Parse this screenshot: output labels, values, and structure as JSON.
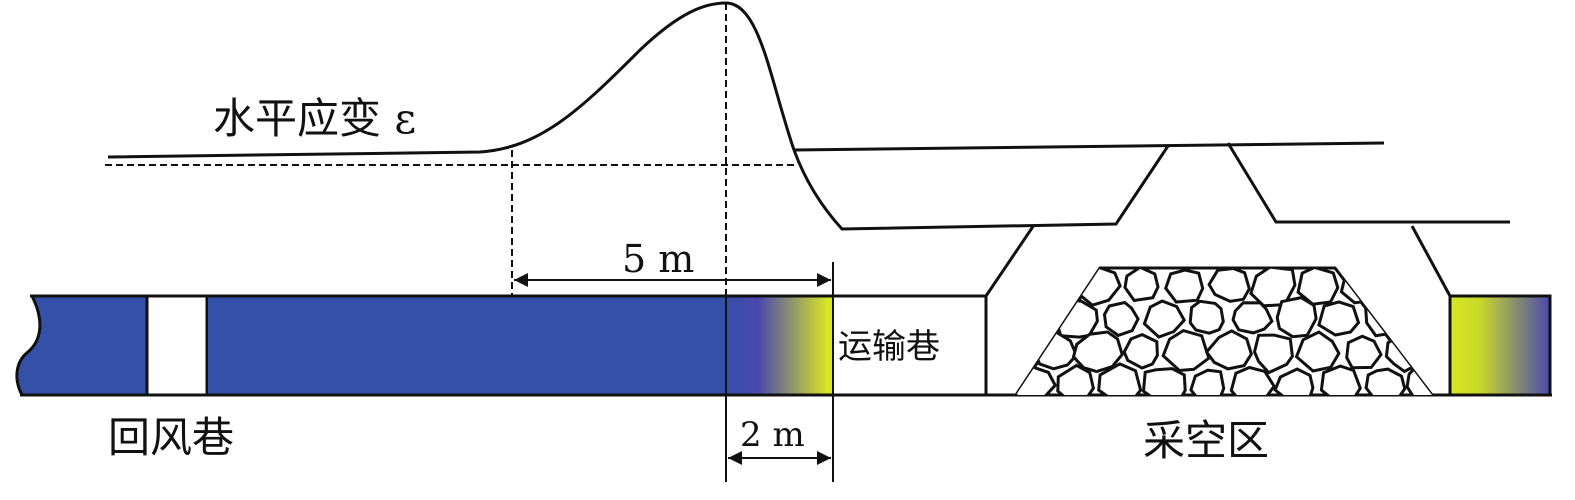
{
  "labels": {
    "strain": "水平应变 ε",
    "return_roadway": "回风巷",
    "haulage_roadway": "运输巷",
    "goaf": "采空区",
    "dim_5m": "5 m",
    "dim_2m": "2 m"
  },
  "colors": {
    "coal": "#3450a8",
    "coal_mid": "#4a48b0",
    "stress_zone": "#d8e624",
    "line": "#111111"
  }
}
